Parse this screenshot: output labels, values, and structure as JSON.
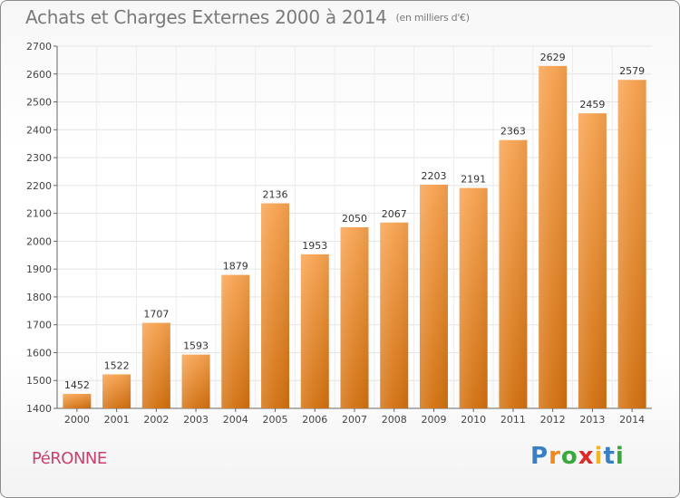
{
  "header": {
    "title": "Achats et Charges Externes 2000 à 2014",
    "subtitle": "(en milliers d'€)"
  },
  "footer": {
    "commune": "PéRONNE",
    "logo_letters": [
      {
        "ch": "P",
        "color": "#3a7fc4"
      },
      {
        "ch": "r",
        "color": "#f08a1c"
      },
      {
        "ch": "o",
        "color": "#3aa83a"
      },
      {
        "ch": "x",
        "color": "#e02a2a"
      },
      {
        "ch": "i",
        "color": "#f0b81c"
      },
      {
        "ch": "t",
        "color": "#3a7fc4"
      },
      {
        "ch": "i",
        "color": "#3aa83a"
      }
    ]
  },
  "chart_data": {
    "type": "bar",
    "categories": [
      "2000",
      "2001",
      "2002",
      "2003",
      "2004",
      "2005",
      "2006",
      "2007",
      "2008",
      "2009",
      "2010",
      "2011",
      "2012",
      "2013",
      "2014"
    ],
    "values": [
      1452,
      1522,
      1707,
      1593,
      1879,
      2136,
      1953,
      2050,
      2067,
      2203,
      2191,
      2363,
      2629,
      2459,
      2579
    ],
    "ylim": [
      1400,
      2700
    ],
    "yticks": [
      1400,
      1500,
      1600,
      1700,
      1800,
      1900,
      2000,
      2100,
      2200,
      2300,
      2400,
      2500,
      2600,
      2700
    ],
    "grid": true,
    "bar_color_top": "#f7a24f",
    "bar_color_bottom": "#d2700f"
  }
}
